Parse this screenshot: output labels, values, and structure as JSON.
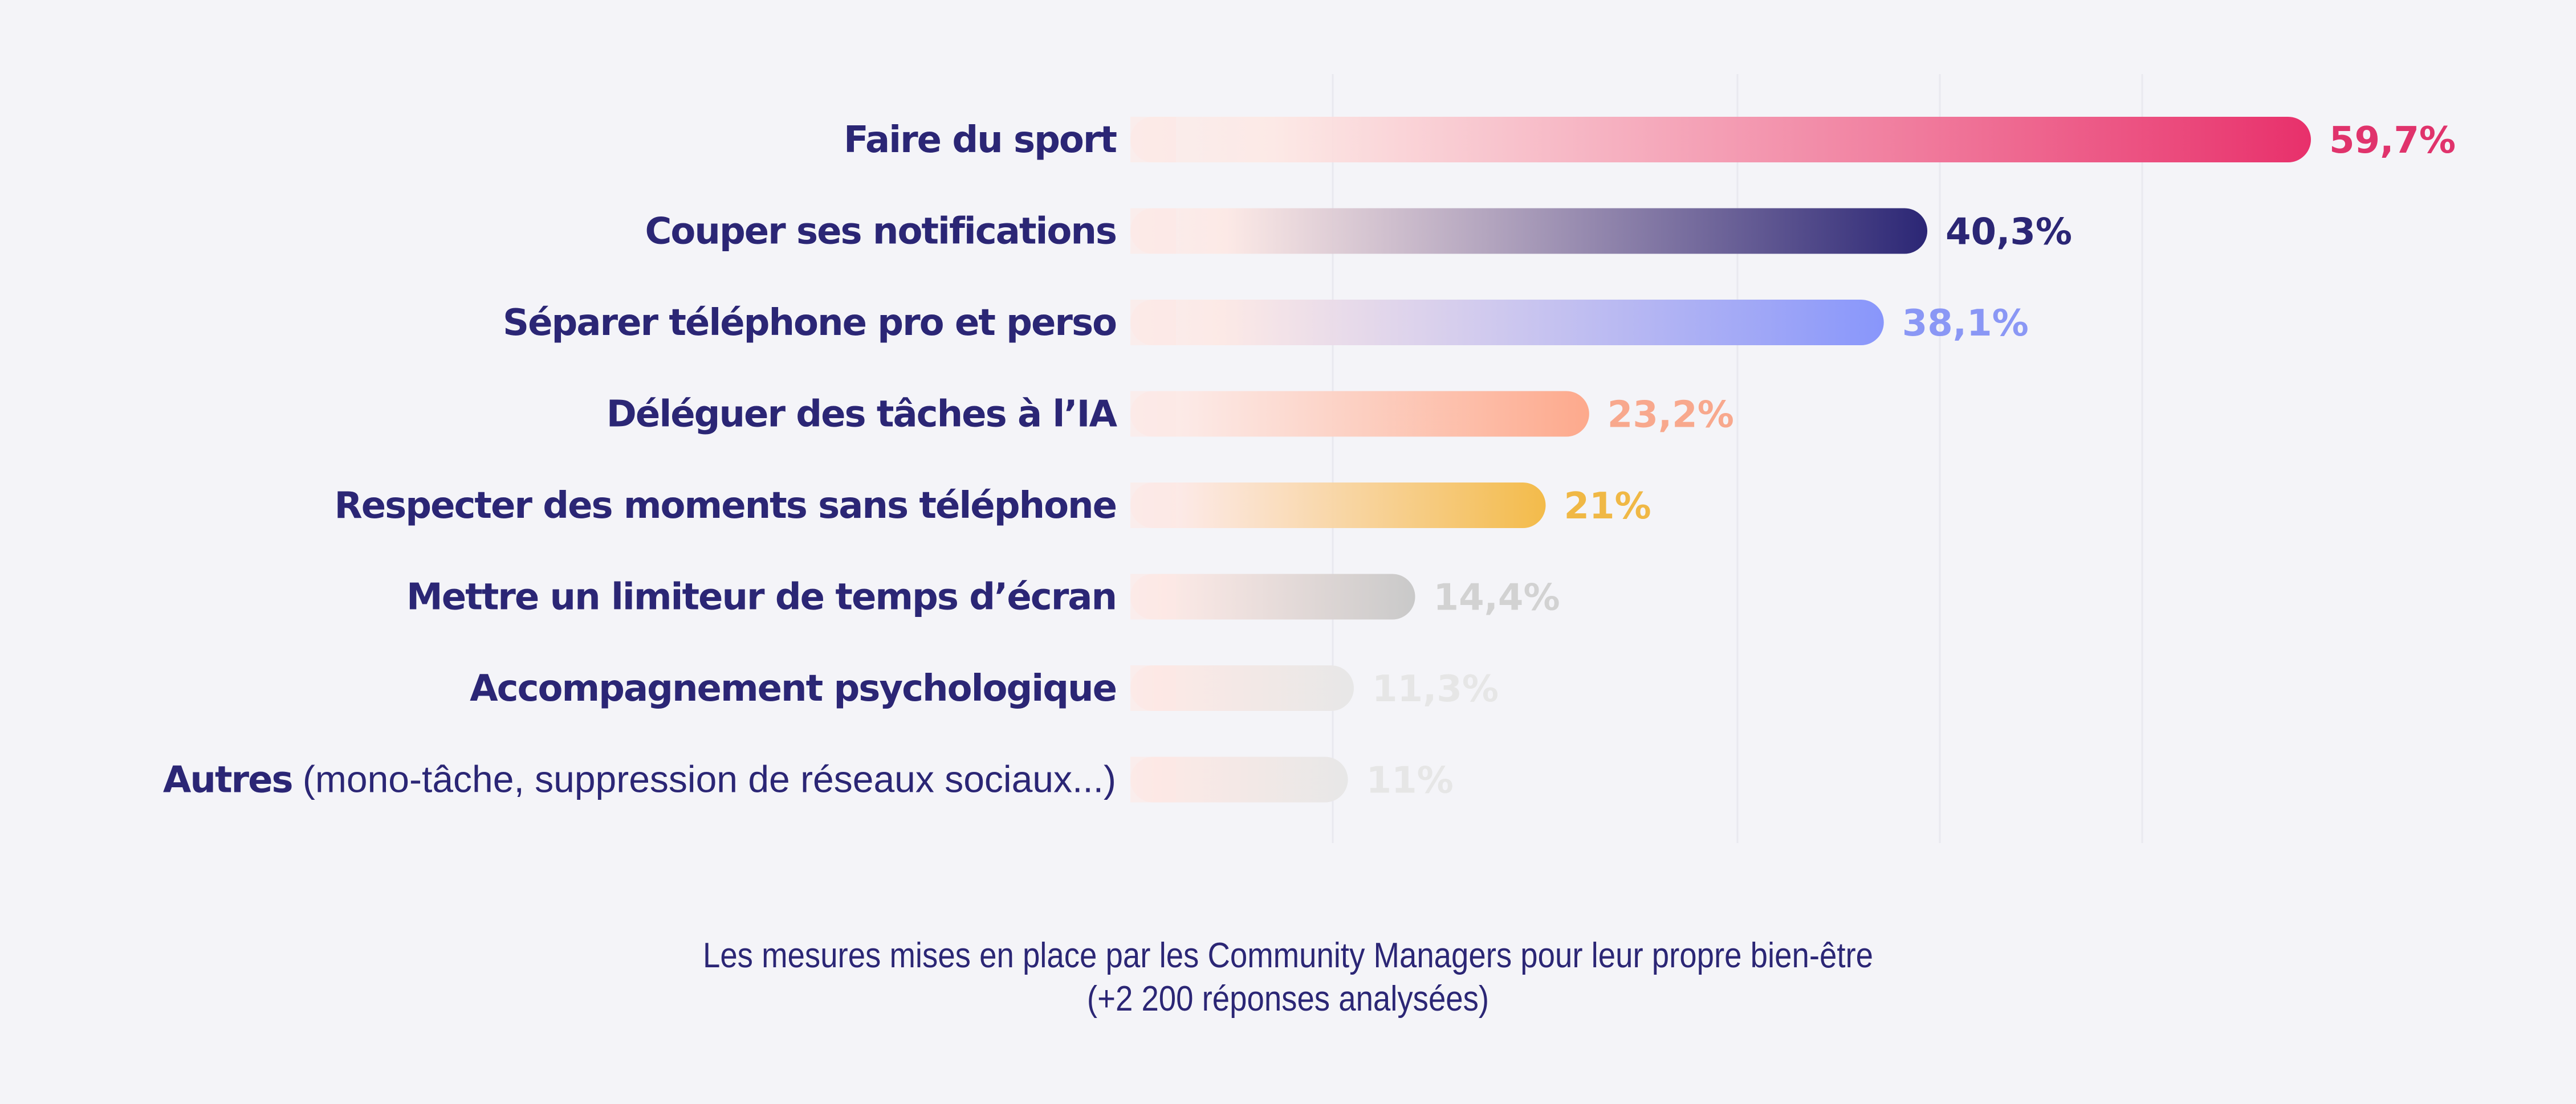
{
  "chart_data": {
    "type": "bar",
    "orientation": "horizontal",
    "categories": [
      {
        "label": "Faire du sport",
        "suffix": ""
      },
      {
        "label": "Couper ses notifications",
        "suffix": ""
      },
      {
        "label": "Séparer téléphone pro et perso",
        "suffix": ""
      },
      {
        "label": "Déléguer des tâches à l’IA",
        "suffix": ""
      },
      {
        "label": "Respecter des moments sans téléphone",
        "suffix": ""
      },
      {
        "label": "Mettre un limiteur de temps d’écran",
        "suffix": ""
      },
      {
        "label": "Accompagnement psychologique",
        "suffix": ""
      },
      {
        "label": "Autres",
        "suffix": " (mono-tâche, suppression de réseaux sociaux...)"
      }
    ],
    "values": [
      59.7,
      40.3,
      38.1,
      23.2,
      21,
      14.4,
      11.3,
      11
    ],
    "value_labels": [
      "59,7%",
      "40,3%",
      "38,1%",
      "23,2%",
      "21%",
      "14,4%",
      "11,3%",
      "11%"
    ],
    "colors": [
      "#e8306b",
      "#2b2675",
      "#8896fb",
      "#fda98c",
      "#f3bb4a",
      "#c9c9c9",
      "#e7e7e7",
      "#e7e7e7"
    ],
    "label_colors": [
      "#e0336c",
      "#2b2675",
      "#8a97f5",
      "#f8a88d",
      "#f0b845",
      "#d2d2d2",
      "#e6e6e6",
      "#e6e6e6"
    ],
    "bar_start_color": "#fde8e4",
    "xlim": [
      0,
      60
    ],
    "grid": true,
    "legend": "none",
    "title": "",
    "xlabel": "",
    "ylabel": ""
  },
  "caption": {
    "line1": "Les mesures mises en place par les Community Managers pour leur propre bien-être",
    "line2": "(+2 200 réponses analysées)"
  }
}
